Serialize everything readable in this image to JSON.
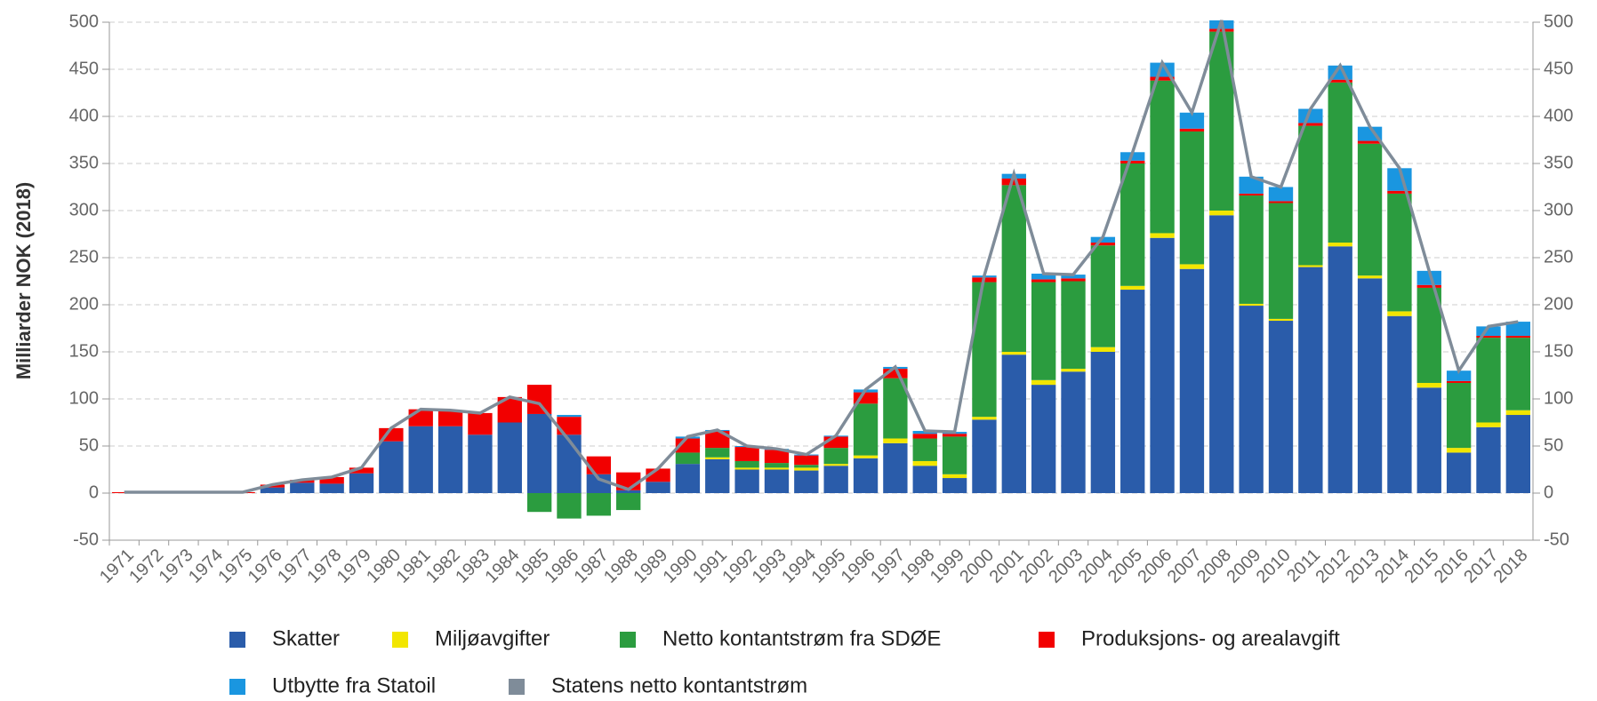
{
  "chart_data": {
    "type": "bar",
    "y_label": "Milliarder NOK (2018)",
    "categories": [
      "1971",
      "1972",
      "1973",
      "1974",
      "1975",
      "1976",
      "1977",
      "1978",
      "1979",
      "1980",
      "1981",
      "1982",
      "1983",
      "1984",
      "1985",
      "1986",
      "1987",
      "1988",
      "1989",
      "1990",
      "1991",
      "1992",
      "1993",
      "1994",
      "1995",
      "1996",
      "1997",
      "1998",
      "1999",
      "2000",
      "2001",
      "2002",
      "2003",
      "2004",
      "2005",
      "2006",
      "2007",
      "2008",
      "2009",
      "2010",
      "2011",
      "2012",
      "2013",
      "2014",
      "2015",
      "2016",
      "2017",
      "2018"
    ],
    "series": [
      {
        "name": "Skatter",
        "color": "#2a5caa",
        "values": [
          0,
          0,
          0,
          0,
          0,
          6,
          11,
          10,
          21,
          55,
          71,
          71,
          62,
          75,
          84,
          62,
          20,
          3,
          12,
          31,
          36,
          25,
          25,
          24,
          29,
          37,
          53,
          29,
          16,
          78,
          147,
          115,
          129,
          150,
          216,
          271,
          238,
          295,
          199,
          183,
          240,
          262,
          228,
          188,
          112,
          43,
          70,
          83
        ]
      },
      {
        "name": "Miljøavgifter",
        "color": "#f2e600",
        "values": [
          0,
          0,
          0,
          0,
          0,
          0,
          0,
          0,
          0,
          0,
          0,
          0,
          0,
          0,
          0,
          0,
          0,
          0,
          0,
          0,
          2,
          2,
          2,
          3,
          2,
          3,
          5,
          5,
          4,
          3,
          3,
          5,
          3,
          5,
          4,
          5,
          5,
          5,
          2,
          2,
          2,
          4,
          3,
          5,
          5,
          5,
          5,
          5
        ]
      },
      {
        "name": "Netto kontantstrøm fra SDØE",
        "color": "#2b9c3f",
        "values": [
          0,
          0,
          0,
          0,
          0,
          0,
          0,
          0,
          0,
          0,
          0,
          0,
          0,
          0,
          -20,
          -27,
          -24,
          -18,
          0,
          12,
          10,
          7,
          5,
          3,
          17,
          55,
          64,
          24,
          40,
          143,
          177,
          104,
          93,
          108,
          130,
          162,
          141,
          190,
          115,
          123,
          148,
          170,
          140,
          125,
          101,
          69,
          90,
          77
        ]
      },
      {
        "name": "Produksjons- og arealavgift",
        "color": "#f20000",
        "values": [
          1,
          1,
          1,
          1,
          1,
          3,
          3,
          7,
          6,
          14,
          18,
          17,
          23,
          27,
          31,
          19,
          19,
          19,
          14,
          15,
          18,
          15,
          14,
          10,
          12,
          12,
          10,
          5,
          3,
          5,
          7,
          3,
          3,
          3,
          3,
          4,
          3,
          3,
          2,
          2,
          3,
          3,
          3,
          3,
          3,
          2,
          2,
          2
        ]
      },
      {
        "name": "Utbytte fra Statoil",
        "color": "#1a96e0",
        "values": [
          0,
          0,
          0,
          0,
          0,
          0,
          0,
          0,
          0,
          0,
          0,
          0,
          0,
          0,
          0,
          2,
          0,
          0,
          0,
          2,
          1,
          1,
          1,
          1,
          1,
          3,
          2,
          3,
          2,
          2,
          5,
          6,
          4,
          6,
          9,
          15,
          17,
          9,
          18,
          15,
          15,
          15,
          15,
          24,
          15,
          11,
          10,
          15
        ]
      },
      {
        "name": "Statens netto kontantstrøm",
        "color": "#7f8c99",
        "type": "line",
        "values": [
          1,
          1,
          1,
          1,
          1,
          9,
          14,
          17,
          27,
          69,
          89,
          88,
          85,
          102,
          95,
          56,
          15,
          4,
          26,
          60,
          67,
          50,
          47,
          41,
          61,
          110,
          134,
          66,
          65,
          231,
          339,
          233,
          232,
          272,
          362,
          457,
          404,
          502,
          336,
          325,
          408,
          454,
          389,
          345,
          236,
          130,
          177,
          182
        ]
      }
    ],
    "ylim": [
      -50,
      500
    ],
    "yticks": [
      -50,
      0,
      50,
      100,
      150,
      200,
      250,
      300,
      350,
      400,
      450,
      500
    ],
    "y2lim": [
      -50,
      500
    ],
    "y2ticks": [
      -50,
      0,
      50,
      100,
      150,
      200,
      250,
      300,
      350,
      400,
      450,
      500
    ],
    "grid": true
  }
}
